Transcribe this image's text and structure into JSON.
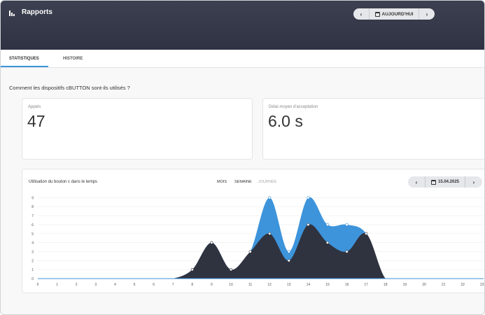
{
  "header": {
    "title": "Rapports",
    "today_label": "AUJOURD'HUI",
    "prev_glyph": "‹",
    "next_glyph": "›"
  },
  "tabs": [
    {
      "label": "STATISTIQUES"
    },
    {
      "label": "HISTOIRE"
    }
  ],
  "question": "Comment les dispositifs cBUTTON sont-ils utilisés ?",
  "cards": [
    {
      "label": "Appels",
      "value": "47"
    },
    {
      "label": "Délai moyen d'acceptation",
      "value": "6.0 s"
    }
  ],
  "chart": {
    "title": "Utilisation du bouton c dans le temps",
    "periods": [
      "MOIS",
      "SEMAINE",
      "JOURNÉE"
    ],
    "date": "15.04.2025"
  },
  "colors": {
    "dark_series": "#2f3340",
    "blue_series": "#3d94db",
    "accent": "#3d94db"
  },
  "chart_data": {
    "type": "area",
    "x": [
      0,
      1,
      2,
      3,
      4,
      5,
      6,
      7,
      8,
      9,
      10,
      11,
      12,
      13,
      14,
      15,
      16,
      17,
      18,
      19,
      20,
      21,
      22,
      23
    ],
    "x_tick_labels": [
      "0",
      "1",
      "2",
      "3",
      "4",
      "5",
      "6",
      "7",
      "8",
      "9",
      "10",
      "11",
      "12",
      "13",
      "14",
      "15",
      "16",
      "17",
      "18",
      "19",
      "20",
      "21",
      "22",
      "23"
    ],
    "y_tick_labels": [
      "0",
      "1",
      "2",
      "3",
      "4",
      "5",
      "6",
      "7",
      "8",
      "9"
    ],
    "ylim": [
      0,
      9
    ],
    "grid": true,
    "stacked": true,
    "series": [
      {
        "color": "dark",
        "values": [
          0,
          0,
          0,
          0,
          0,
          0,
          0,
          0,
          1,
          4,
          1,
          3,
          5,
          2,
          6,
          4,
          3,
          5,
          0,
          0,
          0,
          0,
          0,
          0
        ]
      },
      {
        "color": "blue",
        "values": [
          0,
          0,
          0,
          0,
          0,
          0,
          0,
          0,
          0,
          0,
          0,
          0,
          4,
          1,
          3,
          2,
          3,
          0,
          0,
          0,
          0,
          0,
          0,
          0
        ]
      }
    ]
  }
}
